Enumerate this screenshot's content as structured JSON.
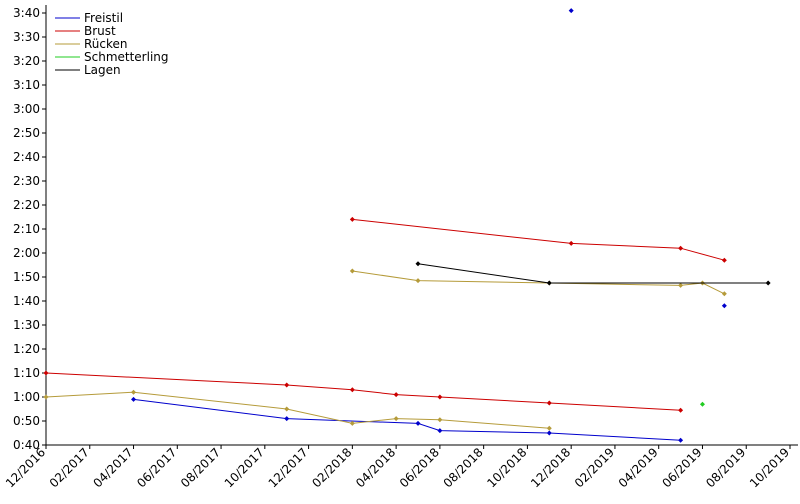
{
  "chart_data": {
    "type": "line",
    "ylim": [
      40,
      220
    ],
    "yticks": [
      {
        "value": 40,
        "label": "0:40"
      },
      {
        "value": 50,
        "label": "0:50"
      },
      {
        "value": 60,
        "label": "1:00"
      },
      {
        "value": 70,
        "label": "1:10"
      },
      {
        "value": 80,
        "label": "1:20"
      },
      {
        "value": 90,
        "label": "1:30"
      },
      {
        "value": 100,
        "label": "1:40"
      },
      {
        "value": 110,
        "label": "1:50"
      },
      {
        "value": 120,
        "label": "2:00"
      },
      {
        "value": 130,
        "label": "2:10"
      },
      {
        "value": 140,
        "label": "2:20"
      },
      {
        "value": 150,
        "label": "2:30"
      },
      {
        "value": 160,
        "label": "2:40"
      },
      {
        "value": 170,
        "label": "2:50"
      },
      {
        "value": 180,
        "label": "3:00"
      },
      {
        "value": 190,
        "label": "3:10"
      },
      {
        "value": 200,
        "label": "3:20"
      },
      {
        "value": 210,
        "label": "3:30"
      },
      {
        "value": 220,
        "label": "3:40"
      }
    ],
    "xlim": [
      "2016-12",
      "2019-10"
    ],
    "xticks": [
      {
        "value": "2016-12",
        "label": "12/2016"
      },
      {
        "value": "2017-02",
        "label": "02/2017"
      },
      {
        "value": "2017-04",
        "label": "04/2017"
      },
      {
        "value": "2017-06",
        "label": "06/2017"
      },
      {
        "value": "2017-08",
        "label": "08/2017"
      },
      {
        "value": "2017-10",
        "label": "10/2017"
      },
      {
        "value": "2017-12",
        "label": "12/2017"
      },
      {
        "value": "2018-02",
        "label": "02/2018"
      },
      {
        "value": "2018-04",
        "label": "04/2018"
      },
      {
        "value": "2018-06",
        "label": "06/2018"
      },
      {
        "value": "2018-08",
        "label": "08/2018"
      },
      {
        "value": "2018-10",
        "label": "10/2018"
      },
      {
        "value": "2018-12",
        "label": "12/2018"
      },
      {
        "value": "2019-02",
        "label": "02/2019"
      },
      {
        "value": "2019-04",
        "label": "04/2019"
      },
      {
        "value": "2019-06",
        "label": "06/2019"
      },
      {
        "value": "2019-08",
        "label": "08/2019"
      },
      {
        "value": "2019-10",
        "label": "10/2019"
      }
    ],
    "legend": "top-left",
    "series": [
      {
        "name": "Freistil",
        "color": "#0000cc",
        "x": [
          "2017-04",
          "2017-11",
          "2018-05",
          "2018-06",
          "2018-11",
          "2019-05",
          null,
          "2018-12",
          null,
          "2019-07"
        ],
        "values": [
          59,
          51,
          49,
          46,
          45,
          42,
          null,
          221,
          null,
          98
        ]
      },
      {
        "name": "Brust",
        "color": "#cc0000",
        "x": [
          "2016-12",
          "2017-11",
          "2018-02",
          "2018-04",
          "2018-06",
          "2018-11",
          "2019-05",
          null,
          "2018-02",
          "2018-12",
          "2019-05",
          "2019-07"
        ],
        "values": [
          70,
          65,
          63,
          61,
          60,
          57.5,
          54.5,
          null,
          134,
          124,
          122,
          117
        ]
      },
      {
        "name": "Rücken",
        "color": "#b59b3a",
        "x": [
          "2016-12",
          "2017-04",
          "2017-11",
          "2018-02",
          "2018-04",
          "2018-06",
          "2018-11",
          null,
          "2018-02",
          "2018-05",
          "2018-11",
          "2019-05",
          "2019-06",
          "2019-07"
        ],
        "values": [
          60,
          62,
          55,
          49,
          51,
          50.5,
          47,
          null,
          112.5,
          108.5,
          107.5,
          106.5,
          107.5,
          103
        ]
      },
      {
        "name": "Schmetterling",
        "color": "#22cc22",
        "x": [
          "2019-06"
        ],
        "values": [
          57
        ]
      },
      {
        "name": "Lagen",
        "color": "#000000",
        "x": [
          "2018-05",
          "2018-11",
          "2019-09"
        ],
        "values": [
          115.5,
          107.5,
          107.5
        ]
      }
    ]
  }
}
